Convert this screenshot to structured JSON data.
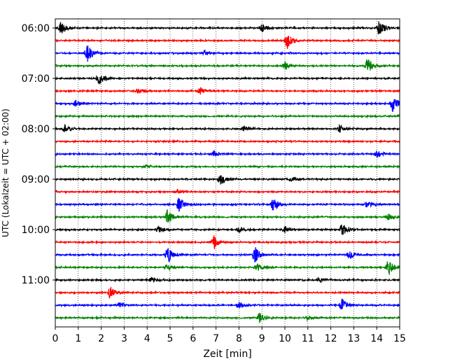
{
  "chart_data": {
    "type": "line",
    "subtype": "helicorder",
    "xlabel": "Zeit  [min]",
    "ylabel": "UTC (Lokalzeit = UTC + 02:00)",
    "xlim": [
      0,
      15
    ],
    "x_ticks": [
      "0",
      "1",
      "2",
      "3",
      "4",
      "5",
      "6",
      "7",
      "8",
      "9",
      "10",
      "11",
      "12",
      "13",
      "14",
      "15"
    ],
    "y_ticks": [
      "06:00",
      "07:00",
      "08:00",
      "09:00",
      "10:00",
      "11:00"
    ],
    "grid": "vertical dotted",
    "traces_per_hour": 4,
    "trace_duration_min": 15,
    "colors": [
      "#000000",
      "#ff0000",
      "#0000ff",
      "#008000"
    ],
    "traces": [
      {
        "start": "06:00",
        "events": [
          {
            "t": 0.25,
            "amp": 1.2
          },
          {
            "t": 9.0,
            "amp": 0.6
          },
          {
            "t": 14.1,
            "amp": 1.3
          }
        ]
      },
      {
        "start": "06:15",
        "events": [
          {
            "t": 10.1,
            "amp": 1.3
          }
        ]
      },
      {
        "start": "06:30",
        "events": [
          {
            "t": 1.4,
            "amp": 1.4
          },
          {
            "t": 6.5,
            "amp": 0.4
          }
        ]
      },
      {
        "start": "06:45",
        "events": [
          {
            "t": 10.0,
            "amp": 0.6
          },
          {
            "t": 13.6,
            "amp": 1.4
          }
        ]
      },
      {
        "start": "07:00",
        "events": [
          {
            "t": 1.9,
            "amp": 1.0
          }
        ]
      },
      {
        "start": "07:15",
        "events": [
          {
            "t": 3.6,
            "amp": 0.4
          },
          {
            "t": 6.3,
            "amp": 0.5
          }
        ]
      },
      {
        "start": "07:30",
        "events": [
          {
            "t": 0.9,
            "amp": 0.5
          },
          {
            "t": 14.7,
            "amp": 1.4
          }
        ]
      },
      {
        "start": "07:45",
        "events": []
      },
      {
        "start": "08:00",
        "events": [
          {
            "t": 0.4,
            "amp": 0.7
          },
          {
            "t": 8.2,
            "amp": 0.5
          },
          {
            "t": 12.4,
            "amp": 0.6
          }
        ]
      },
      {
        "start": "08:15",
        "events": []
      },
      {
        "start": "08:30",
        "events": [
          {
            "t": 6.9,
            "amp": 0.5
          },
          {
            "t": 14.0,
            "amp": 0.7
          }
        ]
      },
      {
        "start": "08:45",
        "events": [
          {
            "t": 3.9,
            "amp": 0.3
          }
        ]
      },
      {
        "start": "09:00",
        "events": [
          {
            "t": 7.2,
            "amp": 1.0
          },
          {
            "t": 10.3,
            "amp": 0.4
          }
        ]
      },
      {
        "start": "09:15",
        "events": [
          {
            "t": 5.3,
            "amp": 0.4
          }
        ]
      },
      {
        "start": "09:30",
        "events": [
          {
            "t": 5.4,
            "amp": 1.2
          },
          {
            "t": 9.5,
            "amp": 1.1
          },
          {
            "t": 13.6,
            "amp": 0.6
          }
        ]
      },
      {
        "start": "09:45",
        "events": [
          {
            "t": 4.9,
            "amp": 1.3
          },
          {
            "t": 14.5,
            "amp": 0.5
          }
        ]
      },
      {
        "start": "10:00",
        "events": [
          {
            "t": 4.5,
            "amp": 0.5
          },
          {
            "t": 8.0,
            "amp": 0.5
          },
          {
            "t": 10.0,
            "amp": 0.5
          },
          {
            "t": 12.5,
            "amp": 1.3
          }
        ]
      },
      {
        "start": "10:15",
        "events": [
          {
            "t": 6.9,
            "amp": 1.1
          }
        ]
      },
      {
        "start": "10:30",
        "events": [
          {
            "t": 4.9,
            "amp": 1.3
          },
          {
            "t": 8.7,
            "amp": 1.3
          },
          {
            "t": 12.8,
            "amp": 0.8
          }
        ]
      },
      {
        "start": "10:45",
        "events": [
          {
            "t": 4.9,
            "amp": 0.6
          },
          {
            "t": 8.8,
            "amp": 0.6
          },
          {
            "t": 14.5,
            "amp": 1.4
          }
        ]
      },
      {
        "start": "11:00",
        "events": [
          {
            "t": 4.2,
            "amp": 0.4
          },
          {
            "t": 11.5,
            "amp": 0.4
          }
        ]
      },
      {
        "start": "11:15",
        "events": [
          {
            "t": 2.4,
            "amp": 1.1
          }
        ]
      },
      {
        "start": "11:30",
        "events": [
          {
            "t": 2.8,
            "amp": 0.5
          },
          {
            "t": 8.0,
            "amp": 0.5
          },
          {
            "t": 12.5,
            "amp": 1.0
          }
        ]
      },
      {
        "start": "11:45",
        "events": [
          {
            "t": 8.9,
            "amp": 0.8
          },
          {
            "t": 11.0,
            "amp": 0.4
          }
        ]
      }
    ]
  }
}
